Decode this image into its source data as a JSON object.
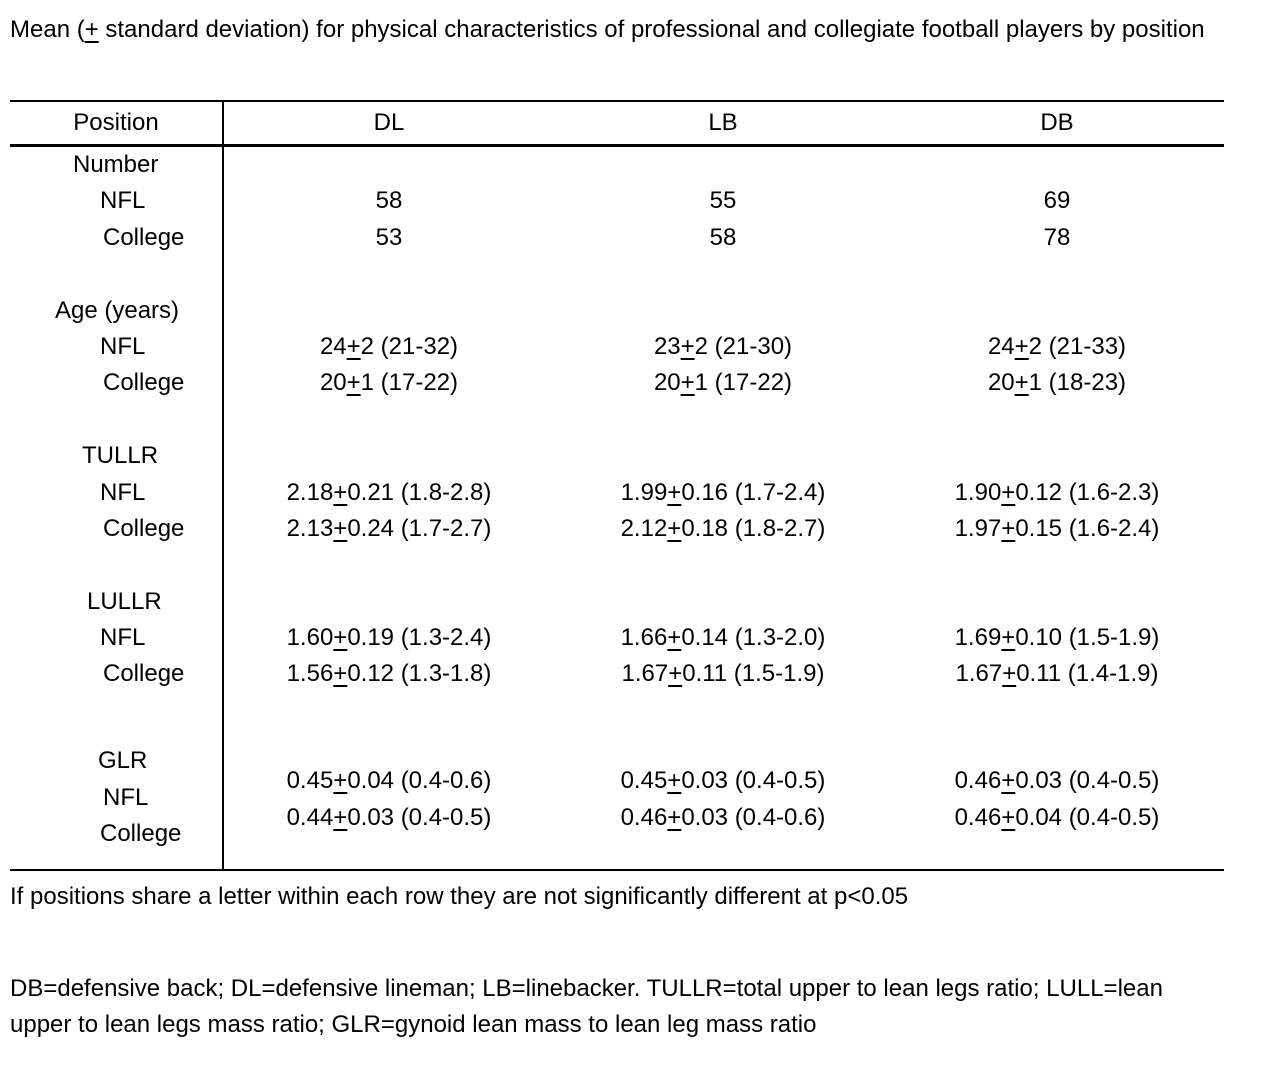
{
  "title": "Mean (± standard deviation) for physical characteristics of professional and collegiate football players by position",
  "table": {
    "columns": [
      "Position",
      "DL",
      "LB",
      "DB"
    ],
    "groups": [
      {
        "label": "Number",
        "rows": [
          {
            "label": "NFL",
            "values": [
              "58",
              "55",
              "69"
            ]
          },
          {
            "label": "College",
            "values": [
              "53",
              "58",
              "78"
            ]
          }
        ]
      },
      {
        "label": "Age (years)",
        "rows": [
          {
            "label": "NFL",
            "values": [
              "24±2 (21-32)",
              "23±2 (21-30)",
              "24±2 (21-33)"
            ]
          },
          {
            "label": "College",
            "values": [
              "20±1 (17-22)",
              "20±1 (17-22)",
              "20±1 (18-23)"
            ]
          }
        ]
      },
      {
        "label": "TULLR",
        "rows": [
          {
            "label": "NFL",
            "values": [
              "2.18±0.21 (1.8-2.8)",
              "1.99±0.16 (1.7-2.4)",
              "1.90±0.12 (1.6-2.3)"
            ]
          },
          {
            "label": "College",
            "values": [
              "2.13±0.24 (1.7-2.7)",
              "2.12±0.18 (1.8-2.7)",
              "1.97±0.15 (1.6-2.4)"
            ]
          }
        ]
      },
      {
        "label": "LULLR",
        "rows": [
          {
            "label": "NFL",
            "values": [
              "1.60±0.19 (1.3-2.4)",
              "1.66±0.14 (1.3-2.0)",
              "1.69±0.10 (1.5-1.9)"
            ]
          },
          {
            "label": "College",
            "values": [
              "1.56±0.12 (1.3-1.8)",
              "1.67±0.11 (1.5-1.9)",
              "1.67±0.11 (1.4-1.9)"
            ]
          }
        ]
      },
      {
        "label": "GLR",
        "rows": [
          {
            "label": "NFL",
            "values": [
              "0.45±0.04 (0.4-0.6)",
              "0.45±0.03 (0.4-0.5)",
              "0.46±0.03 (0.4-0.5)"
            ]
          },
          {
            "label": "College",
            "values": [
              "0.44±0.03 (0.4-0.5)",
              "0.46±0.03 (0.4-0.6)",
              "0.46±0.04 (0.4-0.5)"
            ]
          }
        ]
      }
    ]
  },
  "footnotes": {
    "significance": "If positions share a letter within each row they are not significantly different at p<0.05",
    "abbreviations": "DB=defensive back; DL=defensive lineman; LB=linebacker. TULLR=total upper to lean legs ratio; LULL=lean upper to lean legs mass ratio; GLR=gynoid lean mass to lean leg mass ratio"
  }
}
